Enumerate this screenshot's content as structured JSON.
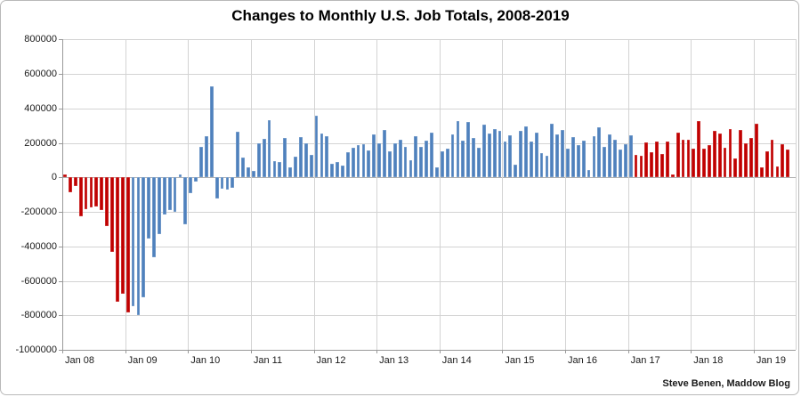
{
  "chart": {
    "title": "Changes to Monthly U.S. Job Totals, 2008-2019",
    "source_note": "Steve Benen, Maddow Blog",
    "colors": {
      "republican_bar": "#C00000",
      "democrat_bar": "#4F81BD",
      "gridline": "#D3D3D3",
      "axis_line": "#999999",
      "text": "#1A1A1A"
    }
  },
  "chart_data": {
    "type": "bar",
    "title": "Changes to Monthly U.S. Job Totals, 2008-2019",
    "xlabel": "",
    "ylabel": "",
    "start_month": "Jan 2008",
    "end_month": "Jul 2019",
    "ylim": [
      -1000000,
      800000
    ],
    "ytick_step": 200000,
    "yticks": [
      800000,
      600000,
      400000,
      200000,
      0,
      -200000,
      -400000,
      -600000,
      -800000,
      -1000000
    ],
    "ytick_labels": [
      "800000",
      "600000",
      "400000",
      "200000",
      "0",
      "-200000",
      "-400000",
      "-600000",
      "-800000",
      "-1000000"
    ],
    "xtick_labels": [
      "Jan 08",
      "Jan 09",
      "Jan 10",
      "Jan 11",
      "Jan 12",
      "Jan 13",
      "Jan 14",
      "Jan 15",
      "Jan 16",
      "Jan 17",
      "Jan 18",
      "Jan 19"
    ],
    "xtick_every_n_months": 12,
    "grid": true,
    "legend": "none",
    "bar_color_rule": "red = months with Republican president (Jan 2008 - Jan 2009, Feb 2017 - Jul 2019), blue = months with Democratic president (Feb 2009 - Jan 2017)",
    "color_segments": [
      {
        "from_index": 0,
        "to_index": 12,
        "color_key": "republican_bar"
      },
      {
        "from_index": 13,
        "to_index": 108,
        "color_key": "democrat_bar"
      },
      {
        "from_index": 109,
        "to_index": 138,
        "color_key": "republican_bar"
      }
    ],
    "values": [
      18000,
      -86000,
      -50000,
      -225000,
      -185000,
      -175000,
      -170000,
      -190000,
      -280000,
      -430000,
      -720000,
      -675000,
      -780000,
      -745000,
      -800000,
      -695000,
      -355000,
      -465000,
      -330000,
      -215000,
      -190000,
      -200000,
      15000,
      -270000,
      -90000,
      -25000,
      177000,
      240000,
      530000,
      -122000,
      -64000,
      -70000,
      -60000,
      263000,
      117000,
      60000,
      40000,
      198000,
      225000,
      330000,
      95000,
      88000,
      230000,
      58000,
      120000,
      235000,
      200000,
      130000,
      356000,
      256000,
      239000,
      79000,
      89000,
      67000,
      148000,
      170000,
      187000,
      191000,
      158000,
      251000,
      196000,
      273000,
      153000,
      199000,
      217000,
      175000,
      101000,
      239000,
      179000,
      213000,
      261000,
      58000,
      153000,
      165000,
      248000,
      325000,
      213000,
      320000,
      227000,
      170000,
      308000,
      256000,
      280000,
      268000,
      210000,
      244000,
      75000,
      270000,
      295000,
      210000,
      260000,
      140000,
      127000,
      310000,
      250000,
      273000,
      168000,
      233000,
      186000,
      213000,
      43000,
      240000,
      291000,
      176000,
      249000,
      220000,
      164000,
      194000,
      245000,
      130000,
      125000,
      203000,
      145000,
      210000,
      138000,
      208000,
      18000,
      261000,
      216000,
      220000,
      168000,
      326000,
      168000,
      186000,
      271000,
      254000,
      170000,
      282000,
      108000,
      277000,
      196000,
      227000,
      312000,
      56000,
      153000,
      216000,
      62000,
      193000,
      164000
    ]
  }
}
